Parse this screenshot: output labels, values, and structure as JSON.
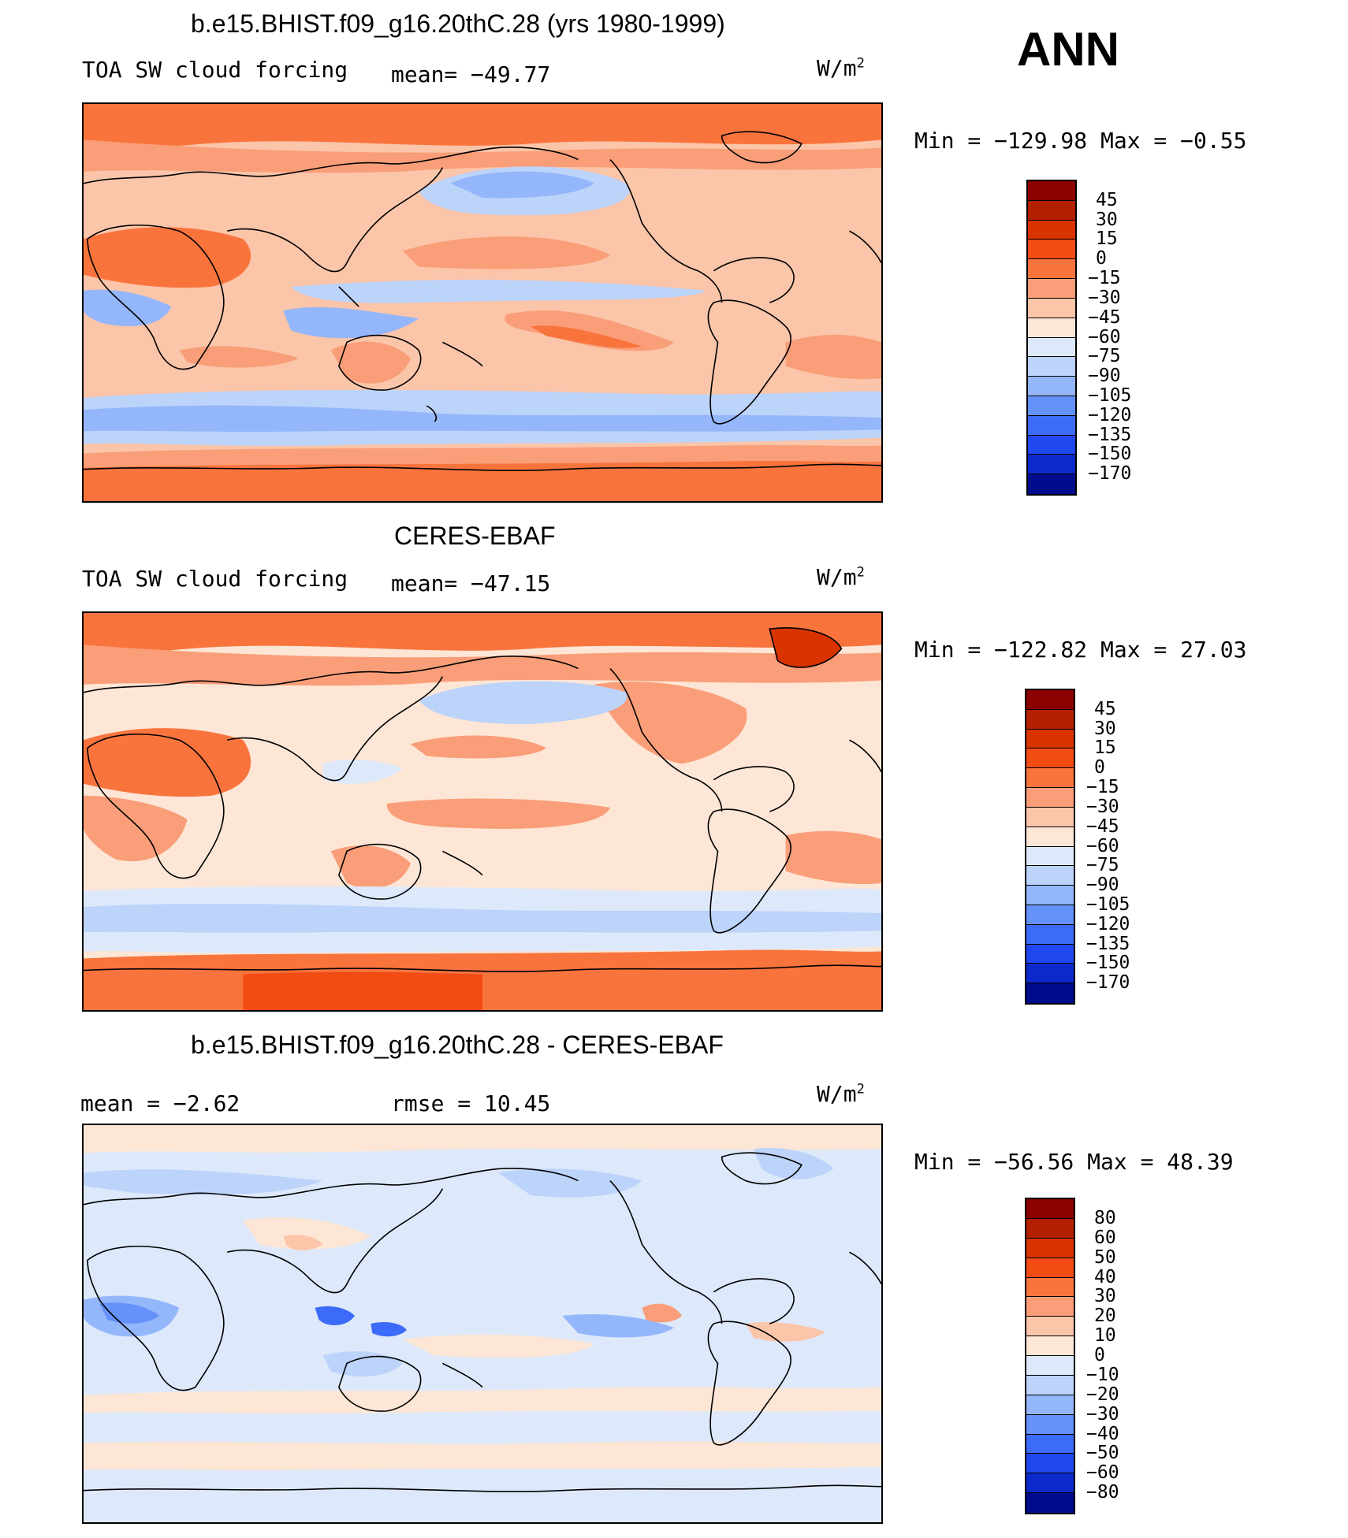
{
  "season": "ANN",
  "unit_label": "W/m",
  "unit_sup": "2",
  "panels": [
    {
      "title": "b.e15.BHIST.f09_g16.20thC.28 (yrs 1980-1999)",
      "left_label": "TOA SW cloud forcing",
      "center_label": "mean= −49.77",
      "minmax": "Min = −129.98 Max =  −0.55",
      "palette": "model"
    },
    {
      "title": "CERES-EBAF",
      "left_label": "TOA SW cloud forcing",
      "center_label": "mean= −47.15",
      "minmax": "Min = −122.82 Max =  27.03",
      "palette": "obs"
    },
    {
      "title": "b.e15.BHIST.f09_g16.20thC.28 - CERES-EBAF",
      "left_label": "mean =  −2.62",
      "center_label": "rmse =  10.45",
      "minmax": "Min = −56.56 Max =  48.39",
      "palette": "diff"
    }
  ],
  "colorbars": [
    {
      "labels": [
        "45",
        "30",
        "15",
        "0",
        "−15",
        "−30",
        "−45",
        "−60",
        "−75",
        "−90",
        "−105",
        "−120",
        "−135",
        "−150",
        "−170"
      ],
      "colors": [
        "#8b0000",
        "#b22000",
        "#d93300",
        "#f24b14",
        "#f9743d",
        "#f99e78",
        "#fbc5a9",
        "#fde6d6",
        "#dde9fa",
        "#bcd3fa",
        "#94b6fa",
        "#6591fb",
        "#3c6bfa",
        "#1f48f0",
        "#0c2acb",
        "#000c8c"
      ]
    },
    {
      "labels": [
        "45",
        "30",
        "15",
        "0",
        "−15",
        "−30",
        "−45",
        "−60",
        "−75",
        "−90",
        "−105",
        "−120",
        "−135",
        "−150",
        "−170"
      ],
      "colors": [
        "#8b0000",
        "#b22000",
        "#d93300",
        "#f24b14",
        "#f9743d",
        "#f99e78",
        "#fbc5a9",
        "#fde6d6",
        "#dde9fa",
        "#bcd3fa",
        "#94b6fa",
        "#6591fb",
        "#3c6bfa",
        "#1f48f0",
        "#0c2acb",
        "#000c8c"
      ]
    },
    {
      "labels": [
        "80",
        "60",
        "50",
        "40",
        "30",
        "20",
        "10",
        "0",
        "−10",
        "−20",
        "−30",
        "−40",
        "−50",
        "−60",
        "−80"
      ],
      "colors": [
        "#8b0000",
        "#b22000",
        "#d93300",
        "#f24b14",
        "#f9743d",
        "#f99e78",
        "#fbc5a9",
        "#fde6d6",
        "#dde9fa",
        "#bcd3fa",
        "#94b6fa",
        "#6591fb",
        "#3c6bfa",
        "#1f48f0",
        "#0c2acb",
        "#000c8c"
      ]
    }
  ]
}
